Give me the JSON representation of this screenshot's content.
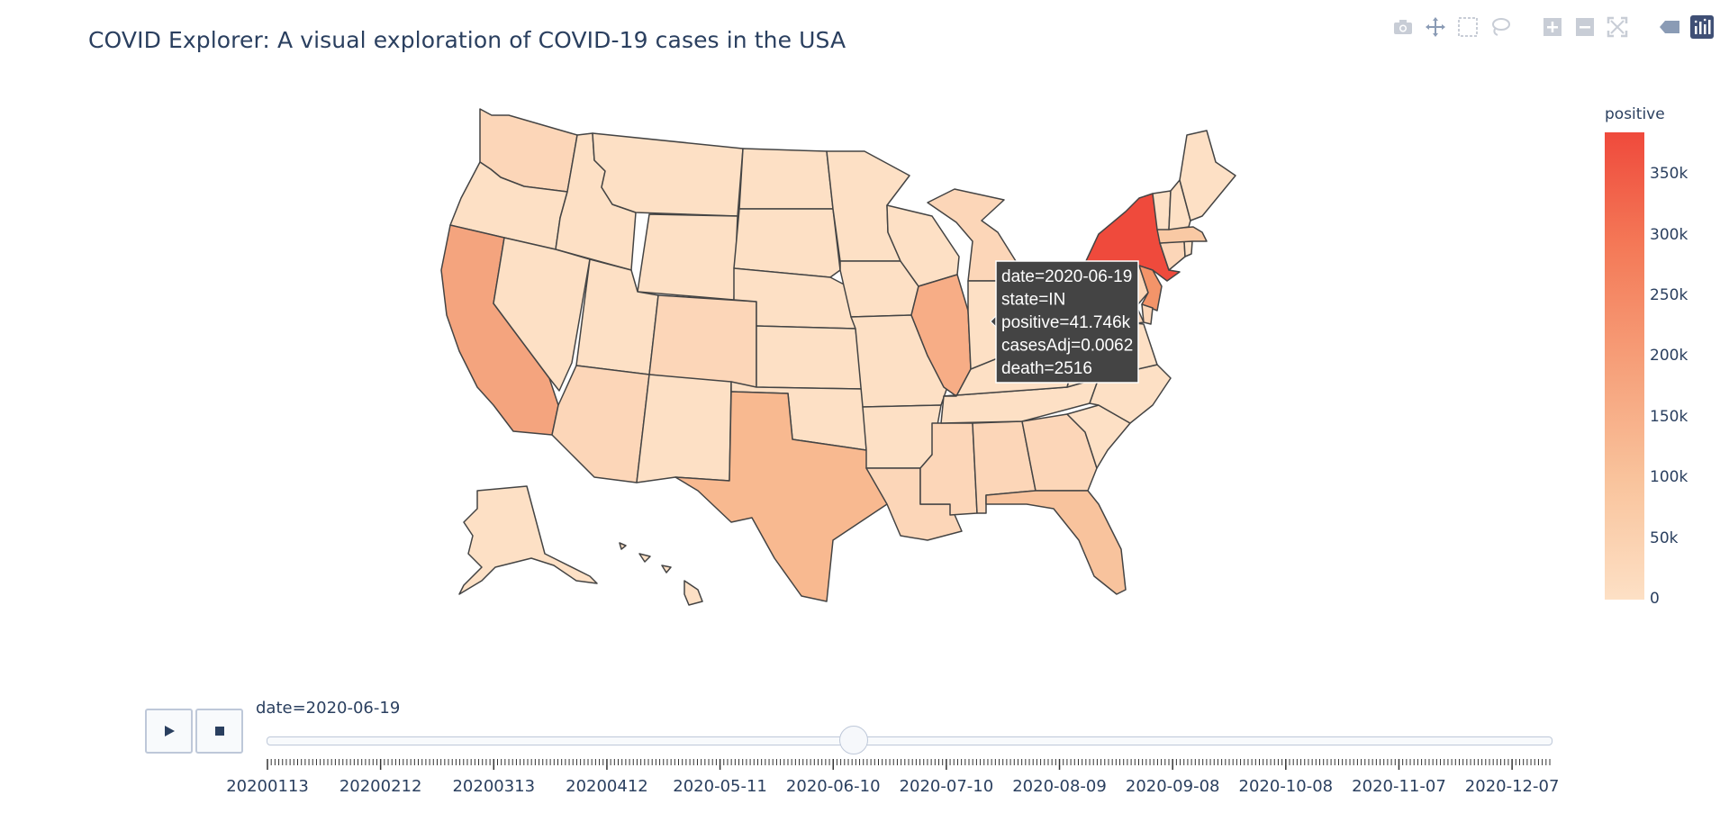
{
  "title": "COVID Explorer: A visual exploration of COVID-19 cases in the USA",
  "modebar": {
    "buttons": [
      "camera-icon",
      "pan-icon",
      "box-select-icon",
      "lasso-icon",
      "zoom-in-icon",
      "zoom-out-icon",
      "autoscale-icon",
      "hover-toggle-icon",
      "plotly-logo-icon"
    ]
  },
  "tooltip": {
    "lines": [
      "date=2020-06-19",
      "state=IN",
      "positive=41.746k",
      "casesAdj=0.0062",
      "death=2516"
    ]
  },
  "colorbar": {
    "title": "positive",
    "ticks": [
      "350k",
      "300k",
      "250k",
      "200k",
      "150k",
      "100k",
      "50k",
      "0"
    ],
    "colors": [
      "#fde0c5",
      "#f9c49d",
      "#f6a07a",
      "#f47a58",
      "#ef4a3c"
    ]
  },
  "animation": {
    "play_icon": "play-icon",
    "stop_icon": "stop-icon",
    "current_label": "date=2020-06-19",
    "tick_labels": [
      "20200113",
      "20200212",
      "20200313",
      "20200412",
      "2020-05-11",
      "2020-06-10",
      "2020-07-10",
      "2020-08-09",
      "2020-09-08",
      "2020-10-08",
      "2020-11-07",
      "2020-12-07"
    ],
    "slider_position_fraction": 0.457
  },
  "map": {
    "state_colors": {
      "NY": "#ef4a3c",
      "CA": "#f4a47e",
      "TX": "#f8b990",
      "IL": "#f7ad86",
      "NJ": "#f39469",
      "FL": "#f8c39d",
      "MA": "#f9c9a4",
      "default": "#fde0c5",
      "light": "#fcd6b8"
    }
  }
}
